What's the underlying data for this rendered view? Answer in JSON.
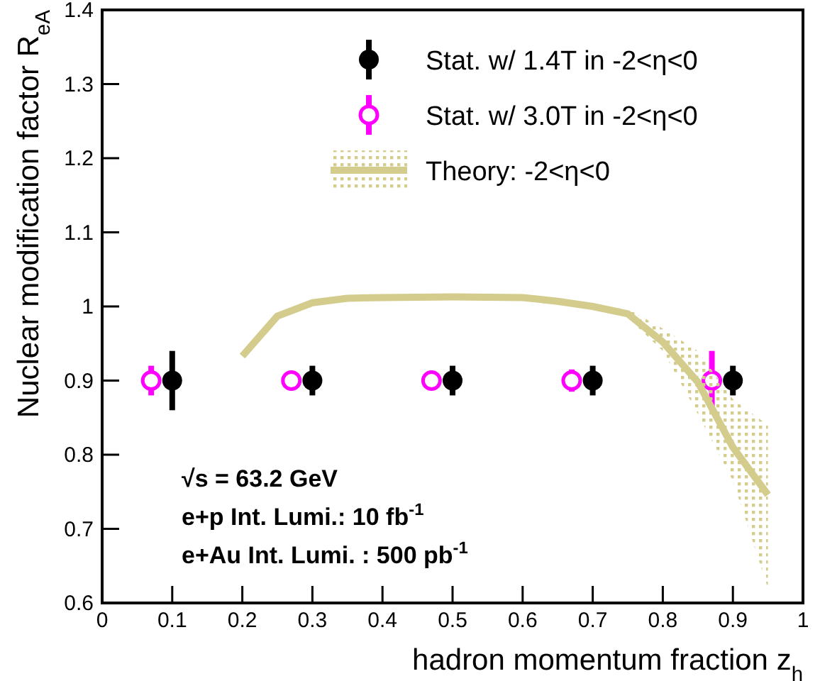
{
  "chart_data": {
    "type": "scatter",
    "xlabel": "hadron momentum fraction z$_{h}$",
    "ylabel": "Nuclear modification factor R$_{eA}$",
    "xlim": [
      0,
      1
    ],
    "xticks": [
      0,
      0.1,
      0.2,
      0.3,
      0.4,
      0.5,
      0.6,
      0.7,
      0.8,
      0.9,
      1
    ],
    "ylim": [
      0.6,
      1.4
    ],
    "yticks": [
      0.6,
      0.7,
      0.8,
      0.9,
      1,
      1.1,
      1.2,
      1.3,
      1.4
    ],
    "legend": "top right",
    "grid": false,
    "series": [
      {
        "name": "Stat. w/ 1.4T in -2<η<0",
        "marker": "circle",
        "color": "#000000",
        "x": [
          0.1,
          0.3,
          0.5,
          0.7,
          0.9
        ],
        "values": [
          0.9,
          0.9,
          0.9,
          0.9,
          0.9
        ],
        "errors": [
          0.04,
          0.02,
          0.02,
          0.02,
          0.02
        ]
      },
      {
        "name": "Stat. w/ 3.0T in -2<η<0",
        "marker": "circle",
        "color": "#ff00ff",
        "x": [
          0.07,
          0.27,
          0.47,
          0.67,
          0.87
        ],
        "values": [
          0.9,
          0.9,
          0.9,
          0.9,
          0.9
        ],
        "errors": [
          0.02,
          0.01,
          0.01,
          0.015,
          0.04
        ]
      },
      {
        "name": "Theory: -2<η<0",
        "type": "line",
        "marker": "none",
        "color": "#d3cc8c",
        "x": [
          0.2,
          0.25,
          0.3,
          0.35,
          0.4,
          0.5,
          0.6,
          0.65,
          0.7,
          0.75,
          0.8,
          0.85,
          0.9,
          0.95
        ],
        "values": [
          0.933,
          0.987,
          1.005,
          1.011,
          1.012,
          1.013,
          1.012,
          1.007,
          1.0,
          0.99,
          0.952,
          0.898,
          0.81,
          0.746
        ],
        "lower": [
          0.933,
          0.987,
          1.005,
          1.011,
          1.012,
          1.013,
          1.012,
          1.007,
          1.0,
          0.985,
          0.94,
          0.855,
          0.765,
          0.62
        ],
        "upper": [
          0.933,
          0.987,
          1.005,
          1.011,
          1.012,
          1.013,
          1.012,
          1.007,
          1.0,
          0.997,
          0.97,
          0.94,
          0.875,
          0.84
        ]
      }
    ],
    "annotations": [
      "√s = 63.2 GeV",
      "e+p Int. Lumi.: 10 fb$^{-1}$",
      "e+Au Int. Lumi. : 500 pb$^{-1}$"
    ]
  }
}
